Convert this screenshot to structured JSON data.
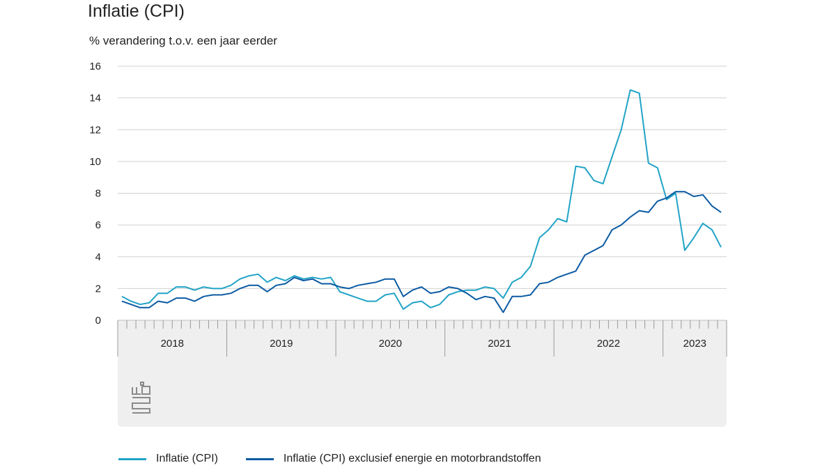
{
  "title": "Inflatie (CPI)",
  "subtitle": "% verandering t.o.v. een jaar eerder",
  "logo": "cbs-logo-icon",
  "colors": {
    "cpi": "#21a3c6",
    "core": "#0b5aa3",
    "grid": "#d0d0d0",
    "footer": "#efefef"
  },
  "chart_data": {
    "type": "line",
    "yticks": [
      0,
      2,
      4,
      6,
      8,
      10,
      12,
      14,
      16
    ],
    "ylim": [
      0,
      16
    ],
    "year_labels": [
      "2018",
      "2019",
      "2020",
      "2021",
      "2022",
      "2023"
    ],
    "x": [
      "2018-01",
      "2018-02",
      "2018-03",
      "2018-04",
      "2018-05",
      "2018-06",
      "2018-07",
      "2018-08",
      "2018-09",
      "2018-10",
      "2018-11",
      "2018-12",
      "2019-01",
      "2019-02",
      "2019-03",
      "2019-04",
      "2019-05",
      "2019-06",
      "2019-07",
      "2019-08",
      "2019-09",
      "2019-10",
      "2019-11",
      "2019-12",
      "2020-01",
      "2020-02",
      "2020-03",
      "2020-04",
      "2020-05",
      "2020-06",
      "2020-07",
      "2020-08",
      "2020-09",
      "2020-10",
      "2020-11",
      "2020-12",
      "2021-01",
      "2021-02",
      "2021-03",
      "2021-04",
      "2021-05",
      "2021-06",
      "2021-07",
      "2021-08",
      "2021-09",
      "2021-10",
      "2021-11",
      "2021-12",
      "2022-01",
      "2022-02",
      "2022-03",
      "2022-04",
      "2022-05",
      "2022-06",
      "2022-07",
      "2022-08",
      "2022-09",
      "2022-10",
      "2022-11",
      "2022-12",
      "2023-01",
      "2023-02",
      "2023-03",
      "2023-04",
      "2023-05",
      "2023-06",
      "2023-07",
      "2023-08"
    ],
    "series": [
      {
        "name": "Inflatie (CPI)",
        "color_key": "cpi",
        "values": [
          1.5,
          1.2,
          1.0,
          1.1,
          1.7,
          1.7,
          2.1,
          2.1,
          1.9,
          2.1,
          2.0,
          2.0,
          2.2,
          2.6,
          2.8,
          2.9,
          2.4,
          2.7,
          2.5,
          2.8,
          2.6,
          2.7,
          2.6,
          2.7,
          1.8,
          1.6,
          1.4,
          1.2,
          1.2,
          1.6,
          1.7,
          0.7,
          1.1,
          1.2,
          0.8,
          1.0,
          1.6,
          1.8,
          1.9,
          1.9,
          2.1,
          2.0,
          1.4,
          2.4,
          2.7,
          3.4,
          5.2,
          5.7,
          6.4,
          6.2,
          9.7,
          9.6,
          8.8,
          8.6,
          10.3,
          12.0,
          14.5,
          14.3,
          9.9,
          9.6,
          7.6,
          8.0,
          4.4,
          5.2,
          6.1,
          5.7,
          4.6,
          null
        ]
      },
      {
        "name": "Inflatie (CPI) exclusief energie en motorbrandstoffen",
        "color_key": "core",
        "values": [
          1.2,
          1.0,
          0.8,
          0.8,
          1.2,
          1.1,
          1.4,
          1.4,
          1.2,
          1.5,
          1.6,
          1.6,
          1.7,
          2.0,
          2.2,
          2.2,
          1.8,
          2.2,
          2.3,
          2.7,
          2.5,
          2.6,
          2.3,
          2.3,
          2.1,
          2.0,
          2.2,
          2.3,
          2.4,
          2.6,
          2.6,
          1.5,
          1.9,
          2.1,
          1.7,
          1.8,
          2.1,
          2.0,
          1.7,
          1.3,
          1.5,
          1.4,
          0.5,
          1.5,
          1.5,
          1.6,
          2.3,
          2.4,
          2.7,
          2.9,
          3.1,
          4.1,
          4.4,
          4.7,
          5.7,
          6.0,
          6.5,
          6.9,
          6.8,
          7.5,
          7.7,
          8.1,
          8.1,
          7.8,
          7.9,
          7.2,
          6.8,
          null
        ]
      }
    ]
  },
  "legend": [
    {
      "label": "Inflatie (CPI)",
      "color_key": "cpi"
    },
    {
      "label": "Inflatie (CPI) exclusief energie en motorbrandstoffen",
      "color_key": "core"
    }
  ]
}
